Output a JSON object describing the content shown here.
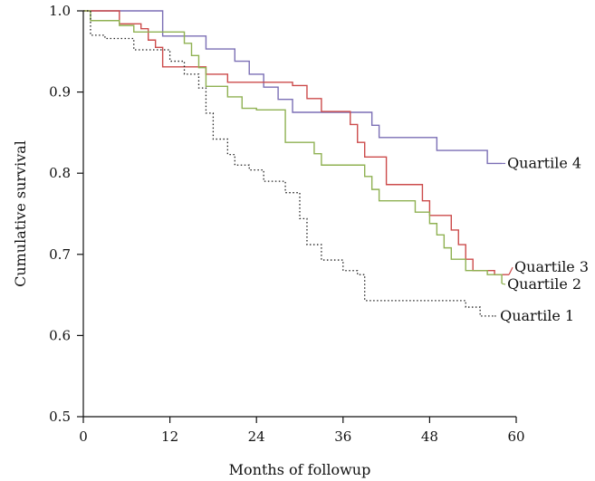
{
  "chart_data": {
    "type": "line",
    "title": "",
    "xlabel": "Months of followup",
    "ylabel": "Cumulative survival",
    "xlim": [
      0,
      60
    ],
    "ylim": [
      0.5,
      1.0
    ],
    "xticks": [
      0,
      12,
      24,
      36,
      48,
      60
    ],
    "yticks": [
      0.5,
      0.6,
      0.7,
      0.8,
      0.9,
      1.0
    ],
    "grid": false,
    "legend": "inline labels at line ends",
    "series": [
      {
        "name": "Quartile 4",
        "color": "#7b6fb5",
        "style": "solid",
        "step_x": [
          0,
          11,
          15,
          17,
          21,
          23,
          25,
          27,
          29,
          36,
          40,
          41,
          49,
          56,
          58
        ],
        "step_y": [
          1.0,
          0.969,
          0.969,
          0.953,
          0.938,
          0.922,
          0.906,
          0.891,
          0.875,
          0.875,
          0.859,
          0.844,
          0.828,
          0.812,
          0.812
        ]
      },
      {
        "name": "Quartile 3",
        "color": "#cc4b4b",
        "style": "solid",
        "step_x": [
          0,
          5,
          8,
          9,
          10,
          11,
          17,
          20,
          29,
          31,
          33,
          37,
          38,
          39,
          42,
          47,
          48,
          51,
          52,
          53,
          54,
          57,
          59
        ],
        "step_y": [
          1.0,
          0.984,
          0.978,
          0.964,
          0.955,
          0.931,
          0.922,
          0.912,
          0.908,
          0.892,
          0.876,
          0.86,
          0.838,
          0.82,
          0.786,
          0.766,
          0.748,
          0.73,
          0.712,
          0.694,
          0.68,
          0.675,
          0.675
        ]
      },
      {
        "name": "Quartile 2",
        "color": "#8fb152",
        "style": "solid",
        "step_x": [
          0,
          1,
          5,
          7,
          9,
          11,
          14,
          15,
          16,
          17,
          20,
          22,
          24,
          28,
          32,
          33,
          34,
          39,
          40,
          41,
          42,
          46,
          48,
          49,
          50,
          51,
          53,
          56,
          58
        ],
        "step_y": [
          1.0,
          0.988,
          0.982,
          0.974,
          0.974,
          0.974,
          0.96,
          0.945,
          0.93,
          0.907,
          0.894,
          0.88,
          0.878,
          0.838,
          0.824,
          0.81,
          0.81,
          0.796,
          0.78,
          0.766,
          0.766,
          0.752,
          0.738,
          0.724,
          0.708,
          0.694,
          0.68,
          0.675,
          0.664
        ]
      },
      {
        "name": "Quartile 1",
        "color": "#222222",
        "style": "dotted",
        "step_x": [
          0,
          1,
          3,
          7,
          12,
          14,
          16,
          17,
          18,
          20,
          21,
          23,
          25,
          28,
          30,
          31,
          33,
          36,
          38,
          39,
          42,
          53,
          55,
          57
        ],
        "step_y": [
          1.0,
          0.97,
          0.966,
          0.952,
          0.938,
          0.922,
          0.905,
          0.874,
          0.842,
          0.823,
          0.81,
          0.804,
          0.79,
          0.776,
          0.744,
          0.712,
          0.693,
          0.68,
          0.675,
          0.643,
          0.643,
          0.635,
          0.624,
          0.624
        ]
      }
    ]
  }
}
